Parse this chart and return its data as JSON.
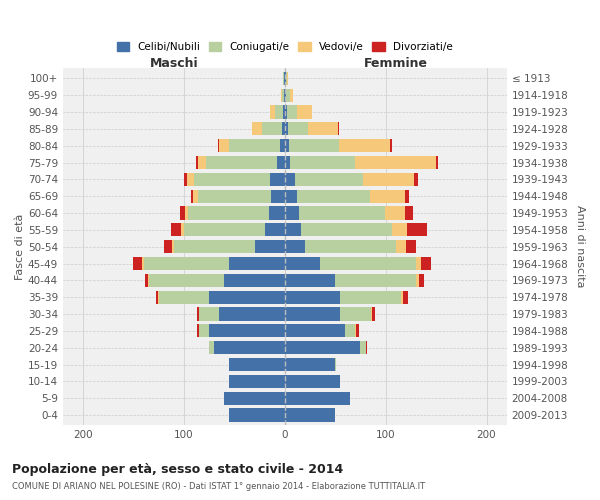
{
  "age_groups": [
    "0-4",
    "5-9",
    "10-14",
    "15-19",
    "20-24",
    "25-29",
    "30-34",
    "35-39",
    "40-44",
    "45-49",
    "50-54",
    "55-59",
    "60-64",
    "65-69",
    "70-74",
    "75-79",
    "80-84",
    "85-89",
    "90-94",
    "95-99",
    "100+"
  ],
  "birth_years": [
    "2009-2013",
    "2004-2008",
    "1999-2003",
    "1994-1998",
    "1989-1993",
    "1984-1988",
    "1979-1983",
    "1974-1978",
    "1969-1973",
    "1964-1968",
    "1959-1963",
    "1954-1958",
    "1949-1953",
    "1944-1948",
    "1939-1943",
    "1934-1938",
    "1929-1933",
    "1924-1928",
    "1919-1923",
    "1914-1918",
    "≤ 1913"
  ],
  "males": {
    "celibe": [
      55,
      60,
      55,
      55,
      70,
      75,
      65,
      75,
      60,
      55,
      30,
      20,
      16,
      14,
      15,
      8,
      5,
      3,
      2,
      1,
      1
    ],
    "coniugato": [
      0,
      0,
      0,
      0,
      5,
      10,
      20,
      50,
      75,
      85,
      80,
      80,
      80,
      72,
      75,
      70,
      50,
      20,
      8,
      2,
      1
    ],
    "vedovo": [
      0,
      0,
      0,
      0,
      0,
      0,
      0,
      1,
      1,
      2,
      2,
      3,
      3,
      5,
      7,
      8,
      10,
      10,
      5,
      1,
      0
    ],
    "divorziato": [
      0,
      0,
      0,
      0,
      0,
      2,
      2,
      2,
      3,
      8,
      8,
      10,
      5,
      2,
      3,
      2,
      1,
      0,
      0,
      0,
      0
    ]
  },
  "females": {
    "nubile": [
      50,
      65,
      55,
      50,
      75,
      60,
      55,
      55,
      50,
      35,
      20,
      16,
      14,
      12,
      10,
      5,
      4,
      3,
      2,
      1,
      1
    ],
    "coniugata": [
      0,
      0,
      0,
      1,
      5,
      10,
      30,
      60,
      80,
      95,
      90,
      90,
      85,
      72,
      68,
      65,
      50,
      20,
      10,
      4,
      1
    ],
    "vedova": [
      0,
      0,
      0,
      0,
      0,
      1,
      1,
      2,
      3,
      5,
      10,
      15,
      20,
      35,
      50,
      80,
      50,
      30,
      15,
      3,
      1
    ],
    "divorziata": [
      0,
      0,
      0,
      0,
      1,
      3,
      3,
      5,
      5,
      10,
      10,
      20,
      8,
      4,
      4,
      2,
      2,
      1,
      0,
      0,
      0
    ]
  },
  "colors": {
    "celibe": "#4472a8",
    "coniugato": "#b8cfa0",
    "vedovo": "#f5c87a",
    "divorziato": "#cc2222"
  },
  "xlim": 220,
  "title": "Popolazione per età, sesso e stato civile - 2014",
  "subtitle": "COMUNE DI ARIANO NEL POLESINE (RO) - Dati ISTAT 1° gennaio 2014 - Elaborazione TUTTITALIA.IT",
  "ylabel_left": "Fasce di età",
  "ylabel_right": "Anni di nascita",
  "xlabel_maschi": "Maschi",
  "xlabel_femmine": "Femmine",
  "legend_labels": [
    "Celibi/Nubili",
    "Coniugati/e",
    "Vedovi/e",
    "Divorziati/e"
  ],
  "bg_color": "#ffffff",
  "plot_bg": "#f0f0f0",
  "grid_color": "#cccccc"
}
